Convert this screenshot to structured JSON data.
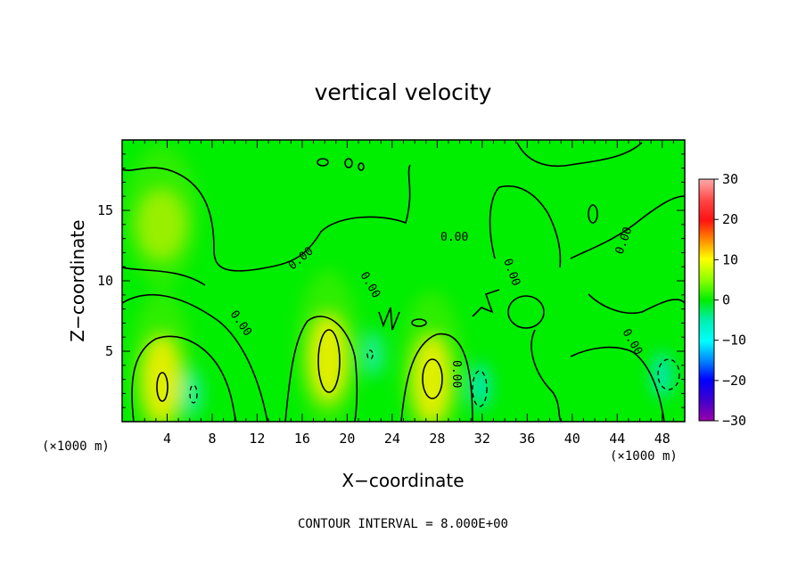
{
  "chart_data": {
    "type": "heatmap",
    "title": "vertical velocity",
    "xlabel": "X−coordinate",
    "ylabel": "Z−coordinate",
    "x_unit": "(×1000 m)",
    "x_unit_right": "(×1000 m)",
    "xlim": [
      0,
      50
    ],
    "ylim": [
      0,
      20
    ],
    "x_ticks": [
      4,
      8,
      12,
      16,
      20,
      24,
      28,
      32,
      36,
      40,
      44,
      48
    ],
    "y_ticks": [
      5,
      10,
      15
    ],
    "colorbar": {
      "range": [
        -30,
        30
      ],
      "ticks": [
        30,
        20,
        10,
        0,
        -10,
        -20,
        -30
      ],
      "tick_labels": [
        "30",
        "20",
        "10",
        "0",
        "−10",
        "−20",
        "−30"
      ]
    },
    "contour_labels": [
      "0.00",
      "0.00",
      "0.00",
      "0.00",
      "0.00",
      "0.00",
      "0.00",
      "0.00"
    ],
    "note": "CONTOUR INTERVAL = 8.000E+00",
    "colors": {
      "background_field": "#00ee00",
      "positive_peak": "#ffee00",
      "negative_peak": "#00eebb"
    },
    "features": [
      {
        "kind": "positive",
        "x": 3.5,
        "z": 3.0,
        "value": 9
      },
      {
        "kind": "positive",
        "x": 18.3,
        "z": 4.5,
        "value": 10
      },
      {
        "kind": "positive",
        "x": 27.5,
        "z": 3.0,
        "value": 9
      },
      {
        "kind": "positive",
        "x": 3.5,
        "z": 14.0,
        "value": 4
      },
      {
        "kind": "negative",
        "x": 6.2,
        "z": 2.0,
        "value": -8
      },
      {
        "kind": "negative",
        "x": 31.8,
        "z": 2.5,
        "value": -9
      },
      {
        "kind": "negative",
        "x": 48.0,
        "z": 3.3,
        "value": -10
      },
      {
        "kind": "negative",
        "x": 22.3,
        "z": 4.8,
        "value": -7
      }
    ]
  }
}
